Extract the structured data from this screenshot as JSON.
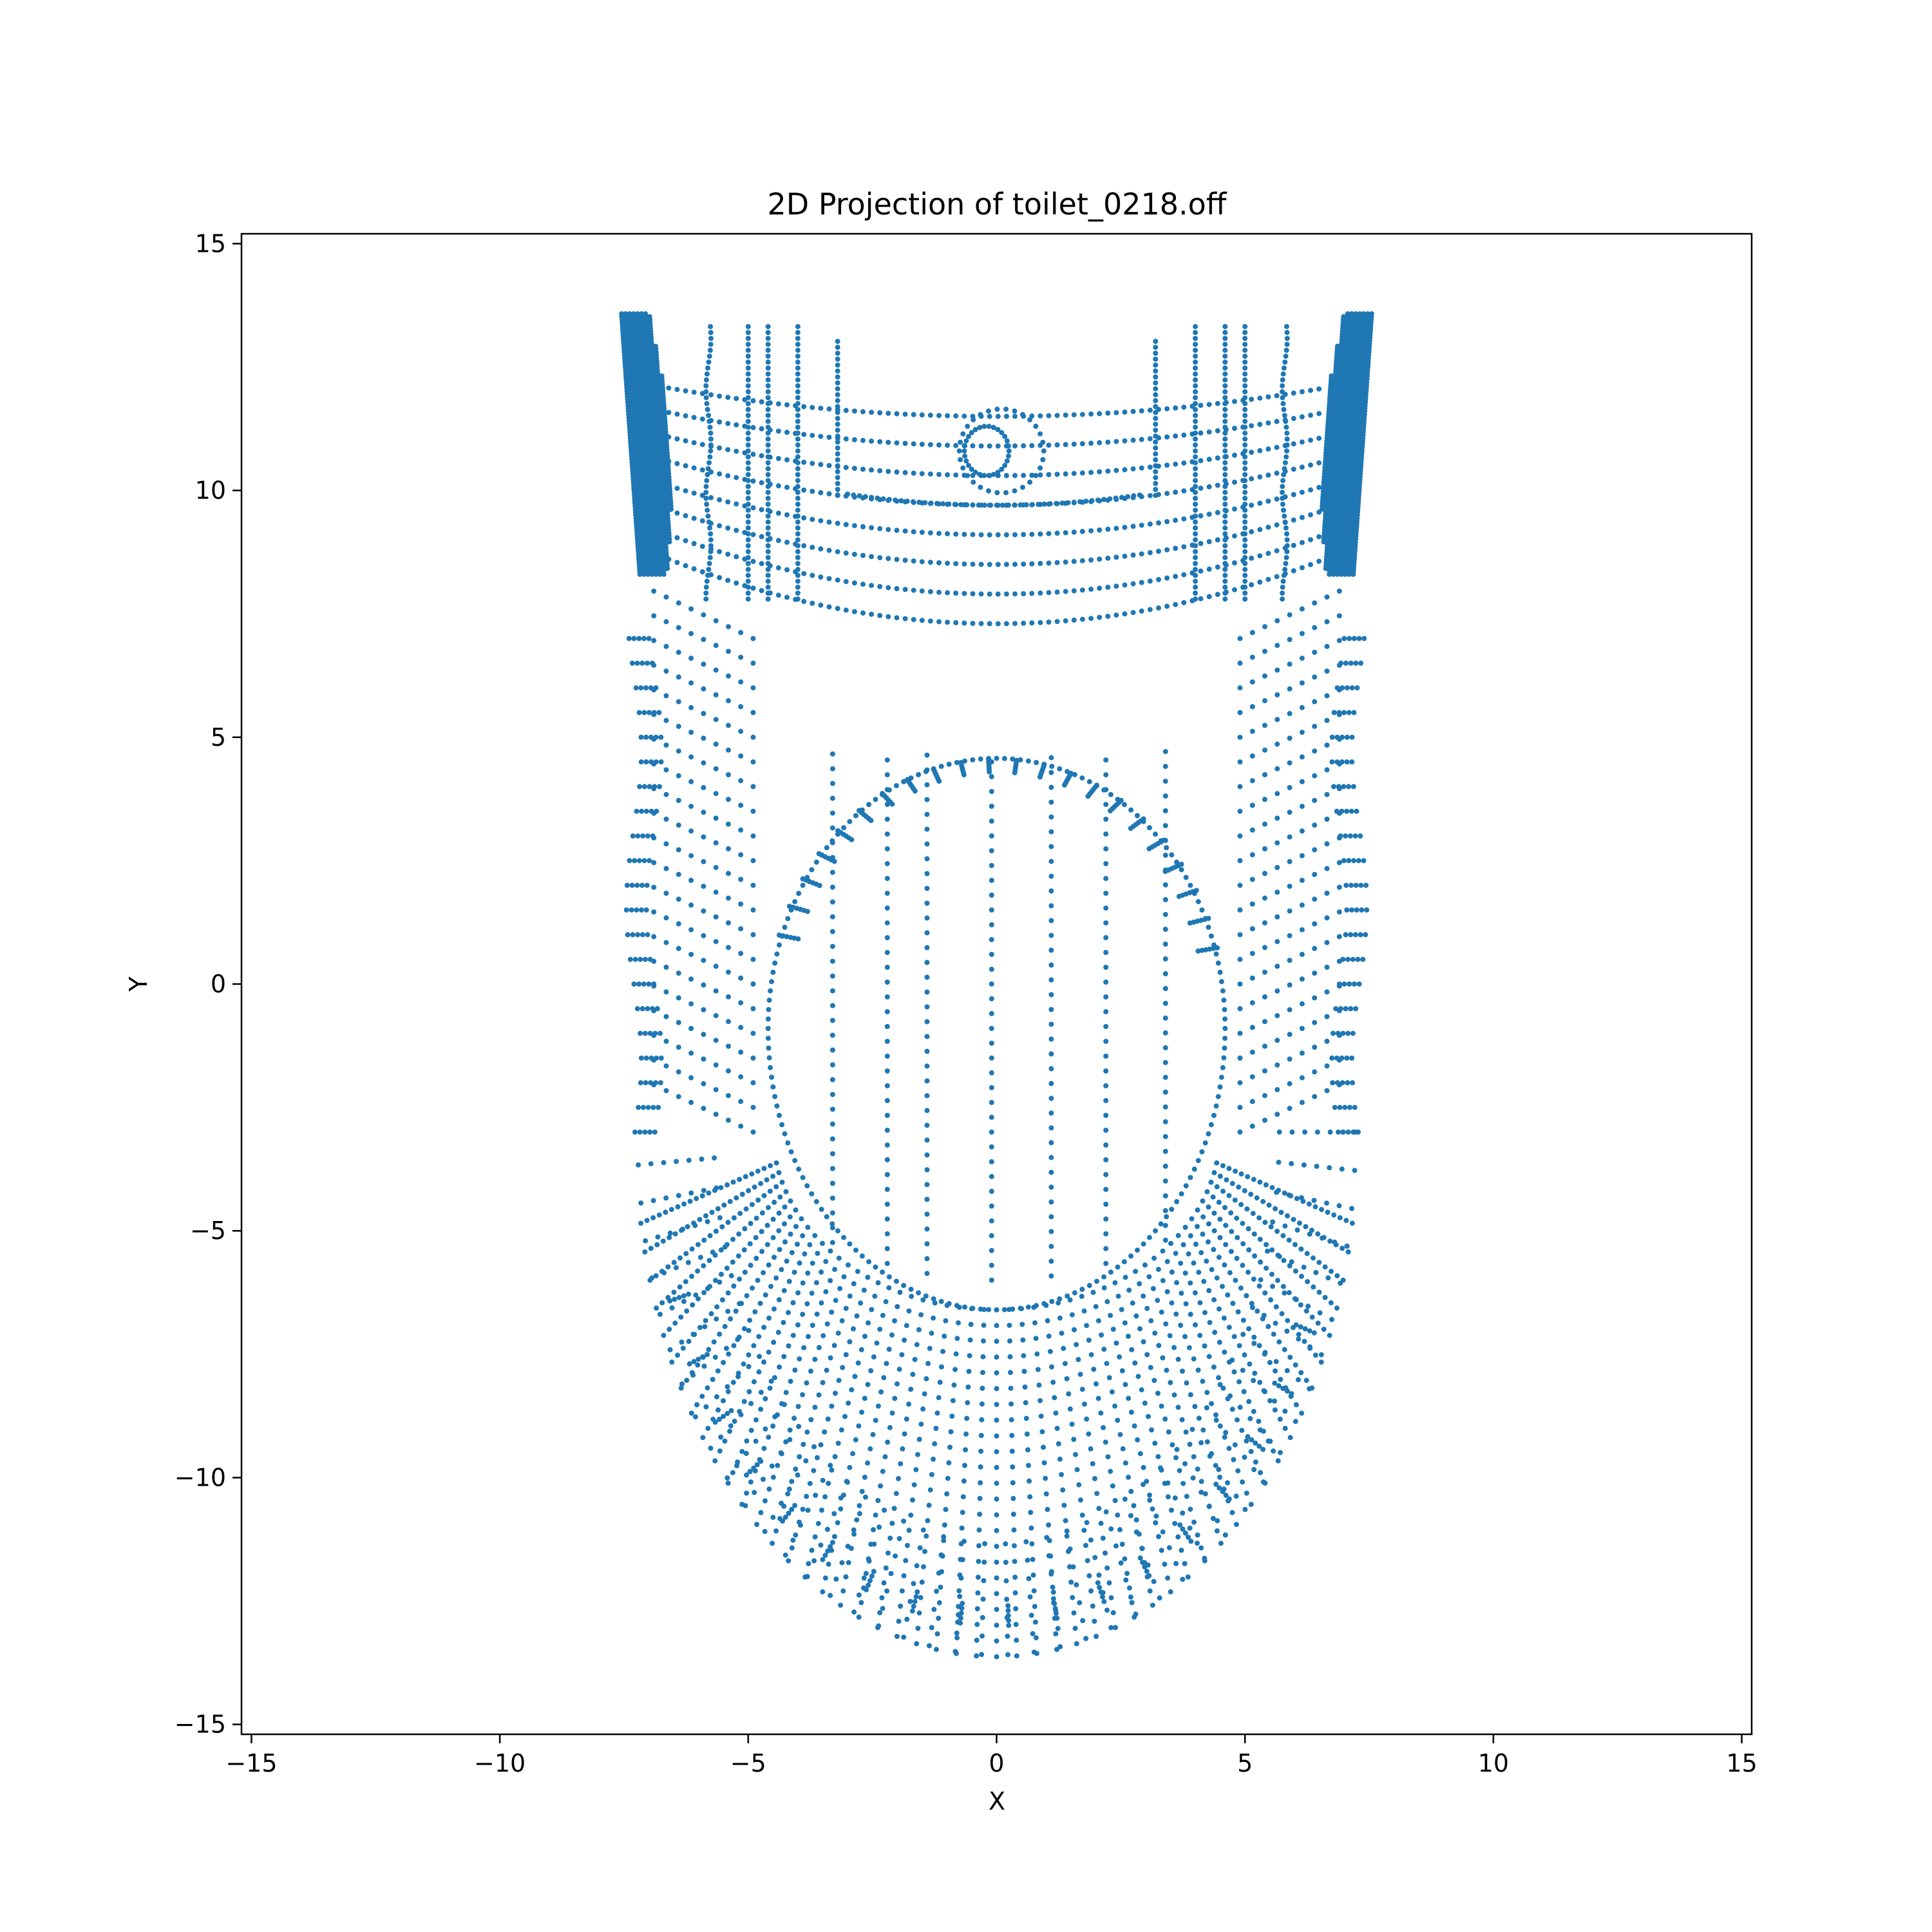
{
  "chart_data": {
    "type": "scatter",
    "title": "2D Projection of toilet_0218.off",
    "xlabel": "X",
    "ylabel": "Y",
    "xlim": [
      -15.2,
      15.2
    ],
    "ylim": [
      -15.2,
      15.2
    ],
    "xticks": [
      -15,
      -10,
      -5,
      0,
      5,
      10,
      15
    ],
    "yticks": [
      -15,
      -10,
      -5,
      0,
      5,
      10,
      15
    ],
    "tick_labels_x": [
      "−15",
      "−10",
      "−5",
      "0",
      "5",
      "10",
      "15"
    ],
    "tick_labels_y": [
      "−15",
      "−10",
      "−5",
      "0",
      "5",
      "10",
      "15"
    ],
    "grid": false,
    "legend": "none",
    "color": "#1f77b4",
    "series": [
      {
        "shape_components": {
          "rear_tank_bands": {
            "x_range": [
              -7.5,
              7.5
            ],
            "y_range": [
              7.2,
              13.7
            ],
            "note": "curved horizontal dotted bands"
          },
          "tank_inner_rim_u": {
            "x_range": [
              -3.3,
              3.3
            ],
            "y_range": [
              9.7,
              13.1
            ]
          },
          "flush_hole_circle": {
            "center": [
              0.1,
              10.8
            ],
            "radius": 0.85
          },
          "left_corner_blob": {
            "x_range": [
              -7.6,
              -6.5
            ],
            "y_range": [
              8.3,
              13.7
            ]
          },
          "right_corner_blob": {
            "x_range": [
              6.5,
              7.6
            ],
            "y_range": [
              8.3,
              13.7
            ]
          },
          "outer_bowl_u": {
            "x_range": [
              -7.3,
              7.3
            ],
            "y_range": [
              -13.7,
              7.3
            ]
          },
          "inner_bowl_oval": {
            "x_range": [
              -4.6,
              4.6
            ],
            "y_range": [
              -6.6,
              4.8
            ]
          },
          "inner_vertical_columns_x": [
            -3.3,
            -2.2,
            -1.4,
            -0.1,
            1.1,
            2.2,
            3.4
          ],
          "inner_vertical_columns_y": [
            -6.0,
            4.8
          ]
        }
      }
    ]
  }
}
